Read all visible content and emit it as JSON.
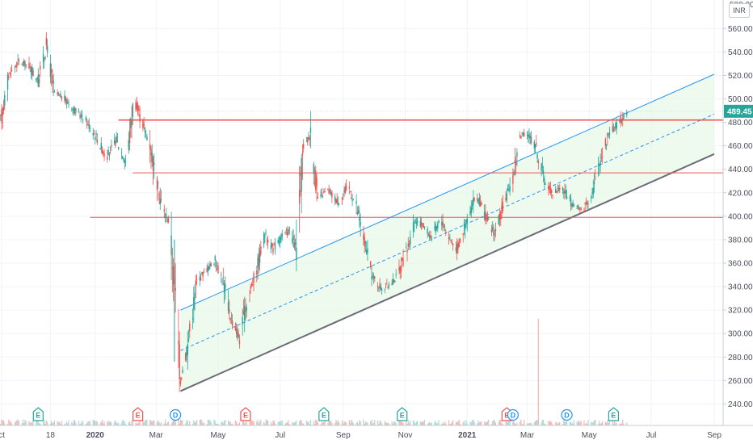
{
  "currency_badge": "INR",
  "chart_data": {
    "type": "candlestick",
    "colors": {
      "up": "#26a69a",
      "down": "#ef5350",
      "channel_line": "#2196f3",
      "channel_fill": "#e8f8e8",
      "lower_line": "#6b6b76",
      "horizontal_line": "#ef5350",
      "price_tag": "#26a69a"
    },
    "current_price": {
      "label": "489.45",
      "value": 489.45
    },
    "y_axis": {
      "range": [
        228,
        586
      ],
      "ticks": [
        "240.00",
        "260.00",
        "280.00",
        "300.00",
        "320.00",
        "340.00",
        "360.00",
        "380.00",
        "400.00",
        "420.00",
        "440.00",
        "460.00",
        "480.00",
        "500.00",
        "520.00",
        "540.00",
        "560.00"
      ],
      "top_clipped_label": "580.00"
    },
    "x_axis": {
      "ticks": [
        {
          "label": "ct",
          "date": "2019-10-01"
        },
        {
          "label": "18",
          "date": "2019-11-18"
        },
        {
          "label": "2020",
          "date": "2020-01-01",
          "bold": true
        },
        {
          "label": "Mar",
          "date": "2020-03-01"
        },
        {
          "label": "May",
          "date": "2020-05-01"
        },
        {
          "label": "Jul",
          "date": "2020-07-01"
        },
        {
          "label": "Sep",
          "date": "2020-09-01"
        },
        {
          "label": "Nov",
          "date": "2020-11-01"
        },
        {
          "label": "2021",
          "date": "2021-01-01",
          "bold": true
        },
        {
          "label": "Mar",
          "date": "2021-03-01"
        },
        {
          "label": "May",
          "date": "2021-05-01"
        },
        {
          "label": "Jul",
          "date": "2021-07-01"
        },
        {
          "label": "Sep",
          "date": "2021-09-01"
        }
      ]
    },
    "price_path": [
      [
        "2019-09-28",
        470
      ],
      [
        "2019-10-08",
        520
      ],
      [
        "2019-10-18",
        532
      ],
      [
        "2019-10-28",
        528
      ],
      [
        "2019-11-06",
        515
      ],
      [
        "2019-11-14",
        545
      ],
      [
        "2019-11-22",
        505
      ],
      [
        "2019-12-02",
        500
      ],
      [
        "2019-12-12",
        490
      ],
      [
        "2019-12-22",
        483
      ],
      [
        "2020-01-02",
        468
      ],
      [
        "2020-01-12",
        450
      ],
      [
        "2020-01-22",
        465
      ],
      [
        "2020-02-01",
        445
      ],
      [
        "2020-02-08",
        500
      ],
      [
        "2020-02-16",
        480
      ],
      [
        "2020-02-24",
        462
      ],
      [
        "2020-03-01",
        430
      ],
      [
        "2020-03-08",
        405
      ],
      [
        "2020-03-14",
        395
      ],
      [
        "2020-03-20",
        330
      ],
      [
        "2020-03-25",
        262
      ],
      [
        "2020-04-01",
        290
      ],
      [
        "2020-04-10",
        345
      ],
      [
        "2020-04-20",
        355
      ],
      [
        "2020-04-28",
        362
      ],
      [
        "2020-05-06",
        345
      ],
      [
        "2020-05-14",
        312
      ],
      [
        "2020-05-22",
        296
      ],
      [
        "2020-05-30",
        330
      ],
      [
        "2020-06-08",
        355
      ],
      [
        "2020-06-16",
        385
      ],
      [
        "2020-06-24",
        372
      ],
      [
        "2020-07-02",
        382
      ],
      [
        "2020-07-10",
        388
      ],
      [
        "2020-07-17",
        372
      ],
      [
        "2020-07-24",
        460
      ],
      [
        "2020-07-31",
        470
      ],
      [
        "2020-08-07",
        415
      ],
      [
        "2020-08-17",
        422
      ],
      [
        "2020-08-27",
        412
      ],
      [
        "2020-09-06",
        426
      ],
      [
        "2020-09-14",
        408
      ],
      [
        "2020-09-22",
        378
      ],
      [
        "2020-09-30",
        348
      ],
      [
        "2020-10-09",
        338
      ],
      [
        "2020-10-17",
        342
      ],
      [
        "2020-10-25",
        350
      ],
      [
        "2020-11-03",
        372
      ],
      [
        "2020-11-11",
        396
      ],
      [
        "2020-11-19",
        392
      ],
      [
        "2020-11-27",
        382
      ],
      [
        "2020-12-06",
        398
      ],
      [
        "2020-12-14",
        382
      ],
      [
        "2020-12-22",
        372
      ],
      [
        "2020-12-31",
        395
      ],
      [
        "2021-01-10",
        418
      ],
      [
        "2021-01-20",
        398
      ],
      [
        "2021-01-28",
        385
      ],
      [
        "2021-02-06",
        410
      ],
      [
        "2021-02-14",
        430
      ],
      [
        "2021-02-22",
        468
      ],
      [
        "2021-03-02",
        470
      ],
      [
        "2021-03-10",
        458
      ],
      [
        "2021-03-18",
        430
      ],
      [
        "2021-03-26",
        420
      ],
      [
        "2021-04-04",
        425
      ],
      [
        "2021-04-14",
        410
      ],
      [
        "2021-04-24",
        405
      ],
      [
        "2021-05-04",
        420
      ],
      [
        "2021-05-12",
        448
      ],
      [
        "2021-05-20",
        470
      ],
      [
        "2021-05-28",
        478
      ],
      [
        "2021-06-07",
        489
      ]
    ],
    "channel": {
      "upper": [
        [
          "2020-03-25",
          320
        ],
        [
          "2021-09-01",
          521
        ]
      ],
      "lower": [
        [
          "2020-03-25",
          251
        ],
        [
          "2021-09-01",
          453
        ]
      ],
      "mid": [
        [
          "2020-03-25",
          285.5
        ],
        [
          "2021-09-01",
          487
        ]
      ]
    },
    "horizontal_levels": [
      {
        "value": 482,
        "from": "2020-01-24",
        "to_right_edge": true,
        "thick": true
      },
      {
        "value": 437,
        "from": "2020-02-07",
        "to_right_edge": true,
        "thick": false
      },
      {
        "value": 399,
        "from": "2019-12-27",
        "to_right_edge": true,
        "thick": false
      }
    ],
    "events": [
      {
        "type": "E",
        "date": "2019-11-06",
        "color": "#26a69a"
      },
      {
        "type": "E",
        "date": "2020-02-12",
        "color": "#ef5350"
      },
      {
        "type": "D",
        "date": "2020-03-20",
        "color": "#2196f3"
      },
      {
        "type": "E",
        "date": "2020-05-28",
        "color": "#ef5350"
      },
      {
        "type": "E",
        "date": "2020-08-13",
        "color": "#26a69a"
      },
      {
        "type": "E",
        "date": "2020-10-29",
        "color": "#26a69a"
      },
      {
        "type": "E",
        "date": "2021-02-09",
        "color": "#ef5350"
      },
      {
        "type": "D",
        "date": "2021-02-15",
        "color": "#2196f3"
      },
      {
        "type": "D",
        "date": "2021-04-09",
        "color": "#2196f3"
      },
      {
        "type": "E",
        "date": "2021-05-25",
        "color": "#26a69a"
      }
    ],
    "volume_spike": {
      "date": "2021-03-12"
    }
  }
}
